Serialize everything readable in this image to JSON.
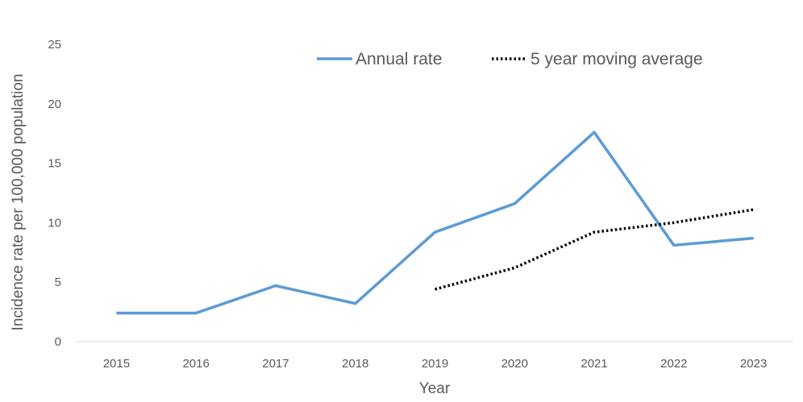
{
  "chart_data": {
    "type": "line",
    "title": "",
    "xlabel": "Year",
    "ylabel": "Incidence rate per 100,000 population",
    "categories": [
      "2015",
      "2016",
      "2017",
      "2018",
      "2019",
      "2020",
      "2021",
      "2022",
      "2023"
    ],
    "ylim": [
      0,
      25
    ],
    "yticks": [
      0,
      5,
      10,
      15,
      20,
      25
    ],
    "grid": false,
    "legend_position": "top-right",
    "series": [
      {
        "name": "Annual rate",
        "style": "solid",
        "color": "#5B9BD5",
        "values": [
          2.4,
          2.4,
          4.7,
          3.2,
          9.2,
          11.6,
          17.6,
          8.1,
          8.7
        ]
      },
      {
        "name": "5 year moving average",
        "style": "dotted",
        "color": "#000000",
        "values": [
          null,
          null,
          null,
          null,
          4.4,
          6.2,
          9.2,
          10.0,
          11.1
        ]
      }
    ]
  }
}
